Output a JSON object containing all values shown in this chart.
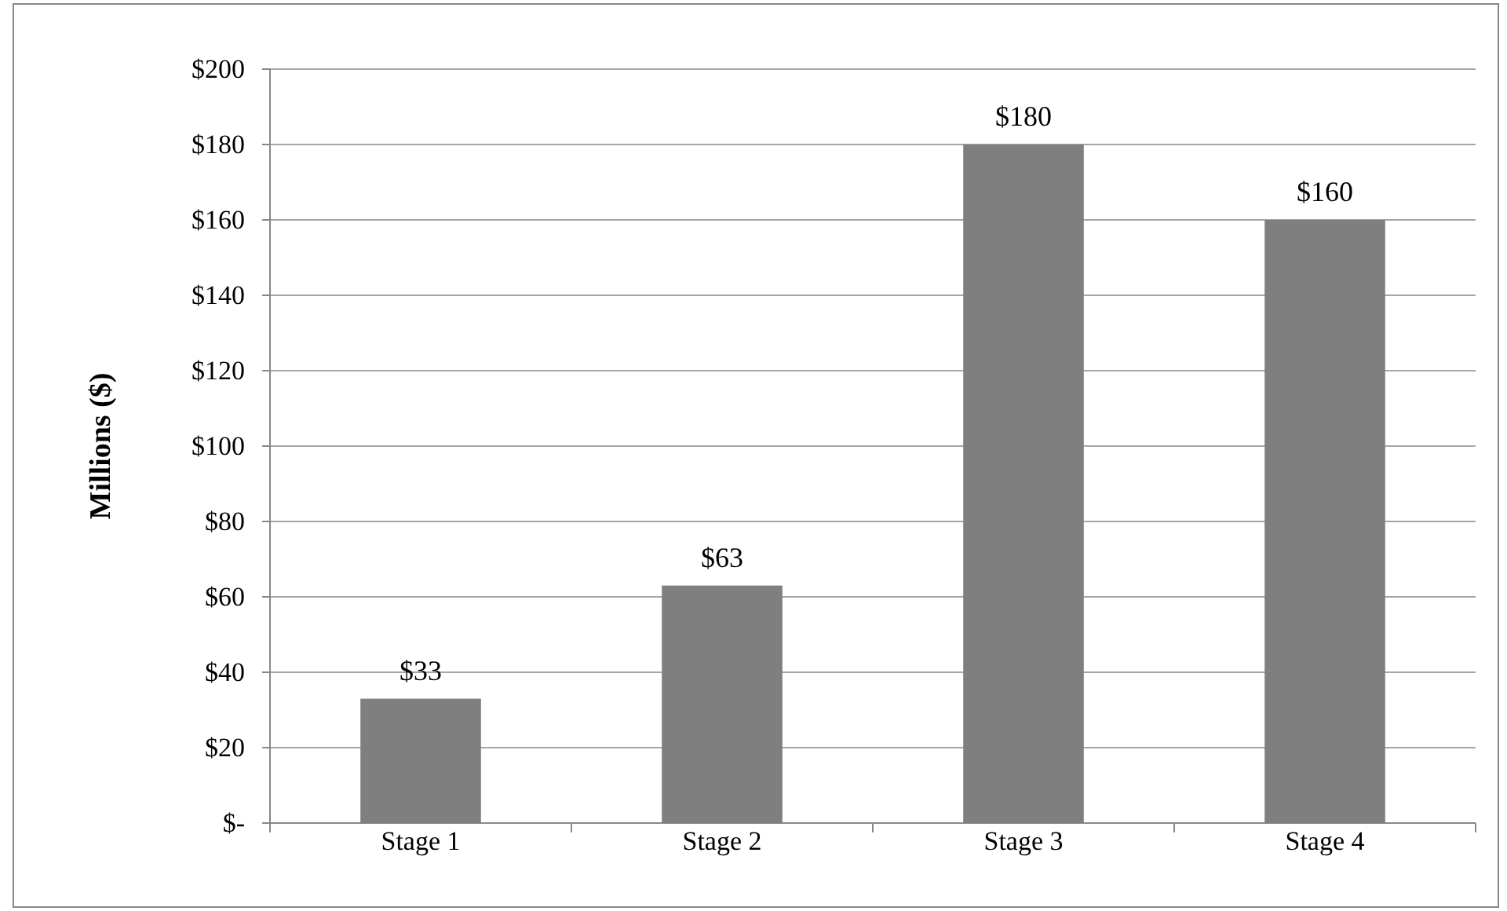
{
  "chart_data": {
    "type": "bar",
    "ylabel": "Millions ($)",
    "categories": [
      "Stage 1",
      "Stage 2",
      "Stage 3",
      "Stage 4"
    ],
    "values": [
      33,
      63,
      180,
      160
    ],
    "color": "#7f7f7f",
    "value_labels": [
      "$33",
      "$63",
      "$180",
      "$160"
    ],
    "ylim": [
      0,
      200
    ],
    "yticks": [
      {
        "value": 0,
        "label": "$-"
      },
      {
        "value": 20,
        "label": "$20"
      },
      {
        "value": 40,
        "label": "$40"
      },
      {
        "value": 60,
        "label": "$60"
      },
      {
        "value": 80,
        "label": "$80"
      },
      {
        "value": 100,
        "label": "$100"
      },
      {
        "value": 120,
        "label": "$120"
      },
      {
        "value": 140,
        "label": "$140"
      },
      {
        "value": 160,
        "label": "$160"
      },
      {
        "value": 180,
        "label": "$180"
      },
      {
        "value": 200,
        "label": "$200"
      }
    ],
    "grid": "y"
  }
}
